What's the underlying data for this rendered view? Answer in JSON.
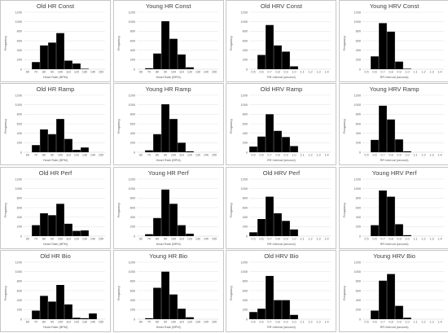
{
  "chart_data": [
    {
      "type": "bar",
      "title": "Old HR Const",
      "xlabel": "Heart Rate (BPM)",
      "ylabel": "Frequency",
      "categories": [
        "60",
        "70",
        "80",
        "90",
        "100",
        "110",
        "120",
        "130",
        "140",
        "150"
      ],
      "values": [
        0,
        150,
        500,
        560,
        760,
        180,
        120,
        10,
        0,
        0
      ],
      "ylim": [
        0,
        1200
      ],
      "yticks": [
        "0",
        "200",
        "400",
        "600",
        "800",
        "1000",
        "1200"
      ],
      "grid": true
    },
    {
      "type": "bar",
      "title": "Young HR Const",
      "xlabel": "Heart Rate (BPM)",
      "ylabel": "Frequency",
      "categories": [
        "60",
        "70",
        "80",
        "90",
        "100",
        "110",
        "120",
        "130",
        "140",
        "150"
      ],
      "values": [
        0,
        20,
        330,
        1010,
        640,
        310,
        40,
        0,
        0,
        0
      ],
      "ylim": [
        0,
        1200
      ],
      "yticks": [
        "0",
        "200",
        "400",
        "600",
        "800",
        "1000",
        "1200"
      ],
      "grid": true
    },
    {
      "type": "bar",
      "title": "Old HRV Const",
      "xlabel": "RR Interval (second)",
      "ylabel": "Frequency",
      "categories": [
        "0.5",
        "0.6",
        "0.7",
        "0.8",
        "0.9",
        "1.0",
        "1.1",
        "1.2",
        "1.3",
        "1.4"
      ],
      "values": [
        0,
        300,
        930,
        500,
        370,
        60,
        0,
        0,
        0,
        0
      ],
      "ylim": [
        0,
        1200
      ],
      "yticks": [
        "0",
        "200",
        "400",
        "600",
        "800",
        "1000",
        "1200"
      ],
      "grid": true
    },
    {
      "type": "bar",
      "title": "Young HRV Const",
      "xlabel": "RR Interval (second)",
      "ylabel": "Frequency",
      "categories": [
        "0.5",
        "0.6",
        "0.7",
        "0.8",
        "0.9",
        "1.0",
        "1.1",
        "1.2",
        "1.3",
        "1.4"
      ],
      "values": [
        0,
        270,
        970,
        790,
        160,
        10,
        0,
        0,
        0,
        0
      ],
      "ylim": [
        0,
        1200
      ],
      "yticks": [
        "0",
        "200",
        "400",
        "600",
        "800",
        "1000",
        "1200"
      ],
      "grid": true
    },
    {
      "type": "bar",
      "title": "Old HR Ramp",
      "xlabel": "Heart Rate (BPM)",
      "ylabel": "Frequency",
      "categories": [
        "60",
        "70",
        "80",
        "90",
        "100",
        "110",
        "120",
        "130",
        "140",
        "150"
      ],
      "values": [
        0,
        150,
        480,
        380,
        700,
        280,
        50,
        100,
        0,
        0
      ],
      "ylim": [
        0,
        1200
      ],
      "yticks": [
        "0",
        "200",
        "400",
        "600",
        "800",
        "1000",
        "1200"
      ],
      "grid": true
    },
    {
      "type": "bar",
      "title": "Young HR Ramp",
      "xlabel": "Heart Rate (BPM)",
      "ylabel": "Frequency",
      "categories": [
        "60",
        "70",
        "80",
        "90",
        "100",
        "110",
        "120",
        "130",
        "140",
        "150"
      ],
      "values": [
        0,
        40,
        380,
        1010,
        700,
        200,
        20,
        0,
        0,
        0
      ],
      "ylim": [
        0,
        1200
      ],
      "yticks": [
        "0",
        "200",
        "400",
        "600",
        "800",
        "1000",
        "1200"
      ],
      "grid": true
    },
    {
      "type": "bar",
      "title": "Old HRV Ramp",
      "xlabel": "RR Interval (second)",
      "ylabel": "Frequency",
      "categories": [
        "0.5",
        "0.6",
        "0.7",
        "0.8",
        "0.9",
        "1.0",
        "1.1",
        "1.2",
        "1.3",
        "1.4"
      ],
      "values": [
        120,
        330,
        800,
        450,
        320,
        130,
        0,
        0,
        0,
        0
      ],
      "ylim": [
        0,
        1200
      ],
      "yticks": [
        "0",
        "200",
        "400",
        "600",
        "800",
        "1000",
        "1200"
      ],
      "grid": true
    },
    {
      "type": "bar",
      "title": "Young HRV Ramp",
      "xlabel": "RR Interval (second)",
      "ylabel": "Frequency",
      "categories": [
        "0.5",
        "0.6",
        "0.7",
        "0.8",
        "0.9",
        "1.0",
        "1.1",
        "1.2",
        "1.3",
        "1.4"
      ],
      "values": [
        0,
        260,
        980,
        690,
        270,
        20,
        0,
        0,
        0,
        0
      ],
      "ylim": [
        0,
        1200
      ],
      "yticks": [
        "0",
        "200",
        "400",
        "600",
        "800",
        "1000",
        "1200"
      ],
      "grid": true
    },
    {
      "type": "bar",
      "title": "Old HR Perf",
      "xlabel": "Heart Rate (BPM)",
      "ylabel": "Frequency",
      "categories": [
        "60",
        "70",
        "80",
        "90",
        "100",
        "110",
        "120",
        "130",
        "140",
        "150"
      ],
      "values": [
        0,
        230,
        480,
        440,
        680,
        260,
        110,
        120,
        0,
        0
      ],
      "ylim": [
        0,
        1200
      ],
      "yticks": [
        "0",
        "200",
        "400",
        "600",
        "800",
        "1000",
        "1200"
      ],
      "grid": true
    },
    {
      "type": "bar",
      "title": "Young HR Perf",
      "xlabel": "Heart Rate (BPM)",
      "ylabel": "Frequency",
      "categories": [
        "60",
        "70",
        "80",
        "90",
        "100",
        "110",
        "120",
        "130",
        "140",
        "150"
      ],
      "values": [
        0,
        40,
        380,
        980,
        680,
        230,
        50,
        0,
        0,
        0
      ],
      "ylim": [
        0,
        1200
      ],
      "yticks": [
        "0",
        "200",
        "400",
        "600",
        "800",
        "1000",
        "1200"
      ],
      "grid": true
    },
    {
      "type": "bar",
      "title": "Old HRV Perf",
      "xlabel": "RR Interval (second)",
      "ylabel": "Frequency",
      "categories": [
        "0.5",
        "0.6",
        "0.7",
        "0.8",
        "0.9",
        "1.0",
        "1.1",
        "1.2",
        "1.3",
        "1.4"
      ],
      "values": [
        80,
        360,
        830,
        480,
        320,
        140,
        0,
        0,
        0,
        0
      ],
      "ylim": [
        0,
        1200
      ],
      "yticks": [
        "0",
        "200",
        "400",
        "600",
        "800",
        "1000",
        "1200"
      ],
      "grid": true
    },
    {
      "type": "bar",
      "title": "Young HRV Perf",
      "xlabel": "RR Interval (second)",
      "ylabel": "Frequency",
      "categories": [
        "0.5",
        "0.6",
        "0.7",
        "0.8",
        "0.9",
        "1.0",
        "1.1",
        "1.2",
        "1.3",
        "1.4"
      ],
      "values": [
        0,
        230,
        960,
        830,
        250,
        20,
        0,
        0,
        0,
        0
      ],
      "ylim": [
        0,
        1200
      ],
      "yticks": [
        "0",
        "200",
        "400",
        "600",
        "800",
        "1000",
        "1200"
      ],
      "grid": true
    },
    {
      "type": "bar",
      "title": "Old HR Bio",
      "xlabel": "Heart Rate (BPM)",
      "ylabel": "Frequency",
      "categories": [
        "60",
        "70",
        "80",
        "90",
        "100",
        "110",
        "120",
        "130",
        "140",
        "150"
      ],
      "values": [
        0,
        180,
        490,
        370,
        720,
        310,
        30,
        20,
        120,
        0
      ],
      "ylim": [
        0,
        1200
      ],
      "yticks": [
        "0",
        "200",
        "400",
        "600",
        "800",
        "1000",
        "1200"
      ],
      "grid": true
    },
    {
      "type": "bar",
      "title": "Young HR Bio",
      "xlabel": "Heart Rate (BPM)",
      "ylabel": "Frequency",
      "categories": [
        "60",
        "70",
        "80",
        "90",
        "100",
        "110",
        "120",
        "130",
        "140",
        "150"
      ],
      "values": [
        0,
        20,
        660,
        1000,
        520,
        220,
        40,
        0,
        0,
        0
      ],
      "ylim": [
        0,
        1200
      ],
      "yticks": [
        "0",
        "200",
        "400",
        "600",
        "800",
        "1000",
        "1200"
      ],
      "grid": true
    },
    {
      "type": "bar",
      "title": "Old HRV Bio",
      "xlabel": "RR Interval (second)",
      "ylabel": "Frequency",
      "categories": [
        "0.5",
        "0.6",
        "0.7",
        "0.8",
        "0.9",
        "1.0",
        "1.1",
        "1.2",
        "1.3",
        "1.4"
      ],
      "values": [
        150,
        220,
        910,
        400,
        400,
        90,
        0,
        0,
        0,
        0
      ],
      "ylim": [
        0,
        1200
      ],
      "yticks": [
        "0",
        "200",
        "400",
        "600",
        "800",
        "1000",
        "1200"
      ],
      "grid": true
    },
    {
      "type": "bar",
      "title": "Young HRV Bio",
      "xlabel": "RR Interval (second)",
      "ylabel": "Frequency",
      "categories": [
        "0.5",
        "0.6",
        "0.7",
        "0.8",
        "0.9",
        "1.0",
        "1.1",
        "1.2",
        "1.3",
        "1.4"
      ],
      "values": [
        0,
        180,
        810,
        950,
        280,
        30,
        0,
        0,
        0,
        0
      ],
      "ylim": [
        0,
        1200
      ],
      "yticks": [
        "0",
        "200",
        "400",
        "600",
        "800",
        "1000",
        "1200"
      ],
      "grid": true
    }
  ],
  "colors": {
    "bar": "#000000",
    "grid": "#d9d9d9",
    "axis": "#bfbfbf",
    "tick_text": "#595959",
    "panel_border": "#c6c6c6"
  }
}
